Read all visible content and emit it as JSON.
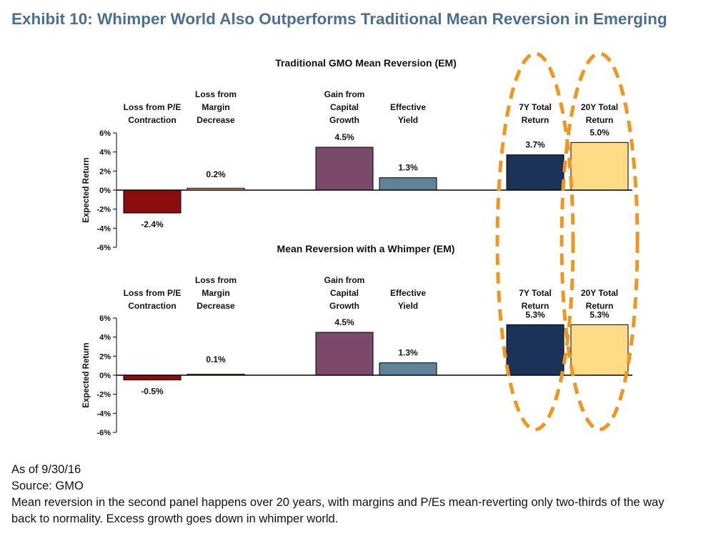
{
  "title": "Exhibit 10: Whimper World Also Outperforms Traditional Mean Reversion in Emerging",
  "colors": {
    "title": "#4a6f94",
    "loss_pe": "#8b0d0d",
    "loss_margin": "#f0a868",
    "gain_growth": "#7b4a6b",
    "yield": "#5f8296",
    "total_7y": "#1b3358",
    "total_20y": "#fedc86",
    "highlight_ellipse": "#f0961e"
  },
  "chart_data": [
    {
      "type": "bar",
      "title": "Traditional GMO Mean Reversion (EM)",
      "ylabel": "Expected Return",
      "ylim": [
        -6,
        6
      ],
      "yticks": [
        "6%",
        "4%",
        "2%",
        "0%",
        "-2%",
        "-4%",
        "-6%"
      ],
      "categories": [
        [
          "Loss from P/E",
          "Contraction"
        ],
        [
          "Loss from",
          "Margin",
          "Decrease"
        ],
        [
          "Gain from",
          "Capital",
          "Growth"
        ],
        [
          "Effective",
          "Yield"
        ],
        [
          "7Y Total",
          "Return"
        ],
        [
          "20Y Total",
          "Return"
        ]
      ],
      "values": [
        -2.4,
        0.2,
        4.5,
        1.3,
        3.7,
        5.0
      ],
      "labels": [
        "-2.4%",
        "0.2%",
        "4.5%",
        "1.3%",
        "3.7%",
        "5.0%"
      ]
    },
    {
      "type": "bar",
      "title": "Mean Reversion with a Whimper (EM)",
      "ylabel": "Expected Return",
      "ylim": [
        -6,
        6
      ],
      "yticks": [
        "6%",
        "4%",
        "2%",
        "0%",
        "-2%",
        "-4%",
        "-6%"
      ],
      "categories": [
        [
          "Loss from P/E",
          "Contraction"
        ],
        [
          "Loss from",
          "Margin",
          "Decrease"
        ],
        [
          "Gain from",
          "Capital",
          "Growth"
        ],
        [
          "Effective",
          "Yield"
        ],
        [
          "7Y Total",
          "Return"
        ],
        [
          "20Y Total",
          "Return"
        ]
      ],
      "values": [
        -0.5,
        0.1,
        4.5,
        1.3,
        5.3,
        5.3
      ],
      "labels": [
        "-0.5%",
        "0.1%",
        "4.5%",
        "1.3%",
        "5.3%",
        "5.3%"
      ]
    }
  ],
  "footer": {
    "as_of": "As of 9/30/16",
    "source": "Source: GMO",
    "note": "Mean reversion in the second panel happens over 20 years, with margins and P/Es mean-reverting only two-thirds of the way back to normality. Excess growth goes down in whimper world."
  }
}
